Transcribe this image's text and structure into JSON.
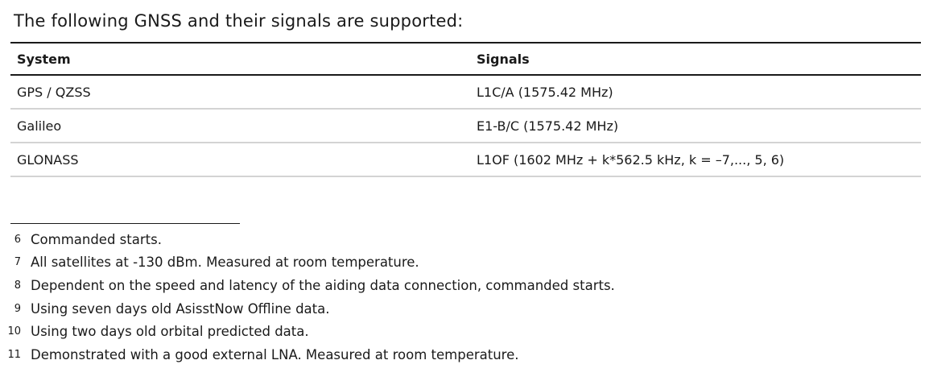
{
  "intro": "The following GNSS and their signals are supported:",
  "table": {
    "headers": [
      "System",
      "Signals"
    ],
    "rows": [
      [
        "GPS / QZSS",
        "L1C/A (1575.42 MHz)"
      ],
      [
        "Galileo",
        "E1-B/C (1575.42 MHz)"
      ],
      [
        "GLONASS",
        "L1OF (1602 MHz + k*562.5 kHz, k = –7,..., 5, 6)"
      ]
    ]
  },
  "footnotes": [
    {
      "num": "6",
      "text": "Commanded starts."
    },
    {
      "num": "7",
      "text": "All satellites at -130 dBm. Measured at room temperature."
    },
    {
      "num": "8",
      "text": "Dependent on the speed and latency of the aiding data connection, commanded starts."
    },
    {
      "num": "9",
      "text": "Using seven days old AsisstNow Offline data."
    },
    {
      "num": "10",
      "text": "Using two days old orbital predicted data."
    },
    {
      "num": "11",
      "text": "Demonstrated with a good external LNA. Measured at room temperature."
    }
  ]
}
